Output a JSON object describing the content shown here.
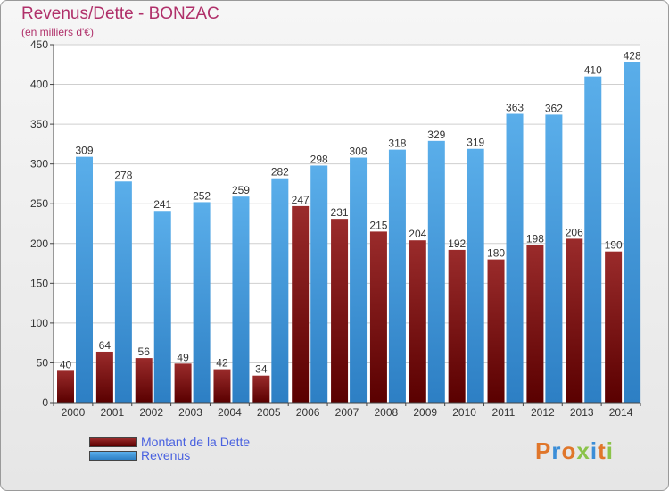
{
  "title": "Revenus/Dette - BONZAC",
  "subtitle": "(en milliers d'€)",
  "legend": [
    {
      "label": "Montant de la Dette",
      "color": "#7a0a0a"
    },
    {
      "label": "Revenus",
      "color": "#4fa3e3"
    }
  ],
  "logo": {
    "text": "Proxiti",
    "colors": [
      "#e0762a",
      "#3b8ed8",
      "#e0762a",
      "#8bc34a",
      "#3b8ed8",
      "#e0762a",
      "#8bc34a"
    ]
  },
  "chart_data": {
    "type": "bar",
    "title": "Revenus/Dette - BONZAC",
    "subtitle": "(en milliers d'€)",
    "categories": [
      "2000",
      "2001",
      "2002",
      "2003",
      "2004",
      "2005",
      "2006",
      "2007",
      "2008",
      "2009",
      "2010",
      "2011",
      "2012",
      "2013",
      "2014"
    ],
    "series": [
      {
        "name": "Montant de la Dette",
        "color": "#7a0a0a",
        "values": [
          40,
          64,
          56,
          49,
          42,
          34,
          247,
          231,
          215,
          204,
          192,
          180,
          198,
          206,
          190
        ]
      },
      {
        "name": "Revenus",
        "color": "#4fa3e3",
        "values": [
          309,
          278,
          241,
          252,
          259,
          282,
          298,
          308,
          318,
          329,
          319,
          363,
          362,
          410,
          428
        ]
      }
    ],
    "ylim": [
      0,
      450
    ],
    "yticks": [
      0,
      50,
      100,
      150,
      200,
      250,
      300,
      350,
      400,
      450
    ],
    "grid": true,
    "legend_position": "bottom-left"
  }
}
